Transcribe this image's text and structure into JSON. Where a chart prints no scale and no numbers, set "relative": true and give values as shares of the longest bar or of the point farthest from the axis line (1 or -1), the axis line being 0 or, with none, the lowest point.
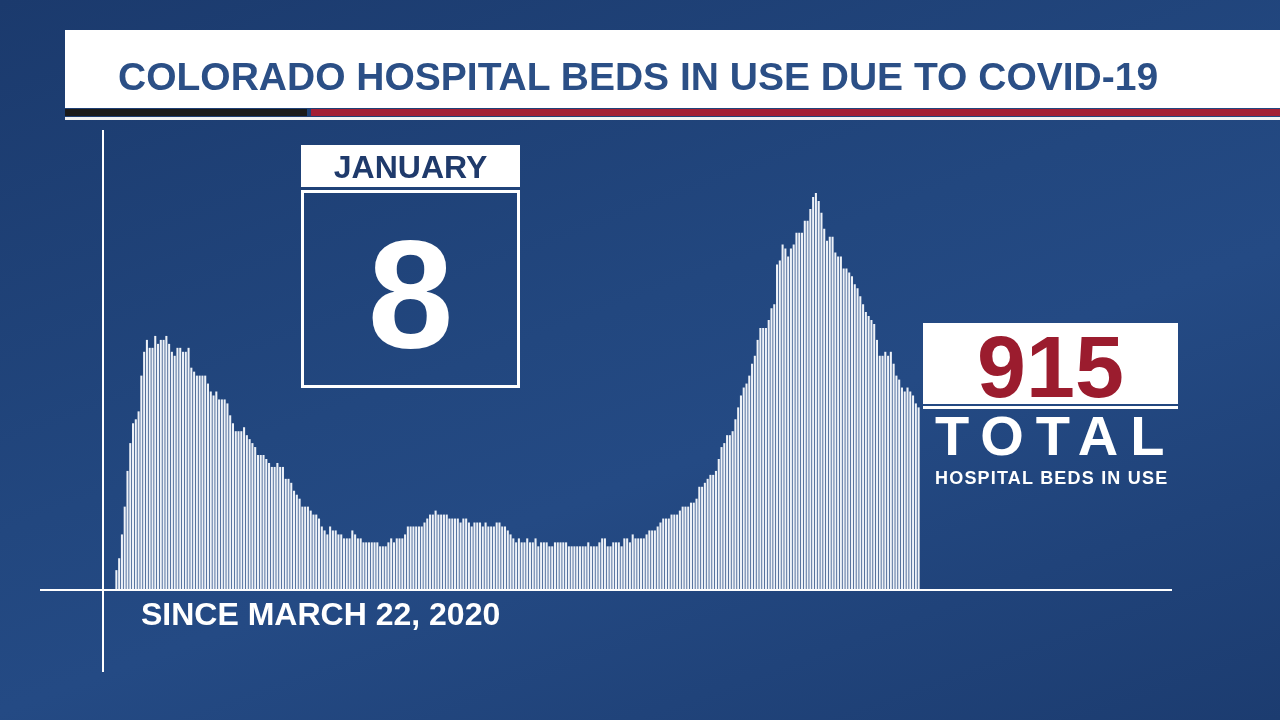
{
  "chart_data": {
    "type": "bar",
    "title": "COLORADO HOSPITAL BEDS IN USE DUE TO COVID-19",
    "relative": true,
    "color": "#eef2f8",
    "categories": [
      null,
      null,
      null,
      null,
      null,
      null,
      null,
      null,
      null,
      null,
      null,
      null,
      null,
      null,
      null,
      null,
      null,
      null,
      null,
      null,
      null,
      null,
      null,
      null,
      null,
      null,
      null,
      null,
      null,
      null,
      null,
      null,
      null,
      null,
      null,
      null,
      null,
      null,
      null,
      null,
      null,
      null,
      null,
      null,
      null,
      null,
      null,
      null,
      null,
      null,
      null,
      null,
      null,
      null,
      null,
      null,
      null,
      null,
      null,
      null,
      null,
      null,
      null,
      null,
      null,
      null,
      null,
      null,
      null,
      null,
      null,
      null,
      null,
      null,
      null,
      null,
      null,
      null,
      null,
      null,
      null,
      null,
      null,
      null,
      null,
      null,
      null,
      null,
      null,
      null,
      null,
      null,
      null,
      null,
      null,
      null,
      null,
      null,
      null,
      null,
      null,
      null,
      null,
      null,
      null,
      null,
      null,
      null,
      null,
      null,
      null,
      null,
      null,
      null,
      null,
      null,
      null,
      null,
      null,
      null,
      null,
      null,
      null,
      null,
      null,
      null,
      null,
      null,
      null,
      null,
      null,
      null,
      null,
      null,
      null,
      null,
      null,
      null,
      null,
      null,
      null,
      null,
      null,
      null,
      null,
      null,
      null,
      null,
      null,
      null,
      null,
      null,
      null,
      null,
      null,
      null,
      null,
      null,
      null,
      null,
      null,
      null,
      null,
      null,
      null,
      null,
      null,
      null,
      null,
      null,
      null,
      null,
      null,
      null,
      null,
      null,
      null,
      null,
      null,
      null,
      null,
      null,
      null,
      null,
      null,
      null,
      null,
      null,
      null,
      null,
      null,
      null,
      null,
      null,
      null,
      null,
      null,
      null,
      null,
      null,
      null,
      null,
      null,
      null,
      null,
      null,
      null,
      null,
      null,
      null,
      null,
      null,
      null,
      null,
      null,
      null,
      null,
      null,
      null,
      null,
      null,
      null,
      null,
      null,
      null,
      null,
      null,
      null,
      null,
      null,
      null,
      null,
      null,
      null,
      null,
      null,
      null,
      null,
      null,
      null,
      null,
      null,
      null,
      null,
      null,
      null,
      null,
      null,
      null,
      null,
      null,
      null,
      null,
      null,
      null,
      null,
      null,
      null,
      null,
      null,
      null,
      null,
      null,
      null,
      null,
      null,
      null,
      null,
      null,
      null,
      null,
      null,
      null,
      null,
      null,
      null,
      null,
      null,
      null,
      null,
      null,
      null,
      null,
      null,
      null,
      null,
      null,
      null,
      null,
      null
    ],
    "values": [
      0.05,
      0.08,
      0.14,
      0.21,
      0.3,
      0.37,
      0.42,
      0.43,
      0.45,
      0.54,
      0.6,
      0.63,
      0.61,
      0.61,
      0.64,
      0.62,
      0.63,
      0.63,
      0.64,
      0.62,
      0.6,
      0.59,
      0.61,
      0.61,
      0.6,
      0.6,
      0.61,
      0.56,
      0.55,
      0.54,
      0.54,
      0.54,
      0.54,
      0.52,
      0.5,
      0.49,
      0.5,
      0.48,
      0.48,
      0.48,
      0.47,
      0.44,
      0.42,
      0.4,
      0.4,
      0.4,
      0.41,
      0.39,
      0.38,
      0.37,
      0.36,
      0.34,
      0.34,
      0.34,
      0.33,
      0.32,
      0.31,
      0.31,
      0.32,
      0.31,
      0.31,
      0.28,
      0.28,
      0.27,
      0.25,
      0.24,
      0.23,
      0.21,
      0.21,
      0.21,
      0.2,
      0.19,
      0.19,
      0.18,
      0.16,
      0.15,
      0.14,
      0.16,
      0.15,
      0.15,
      0.14,
      0.14,
      0.13,
      0.13,
      0.13,
      0.15,
      0.14,
      0.13,
      0.13,
      0.12,
      0.12,
      0.12,
      0.12,
      0.12,
      0.12,
      0.11,
      0.11,
      0.11,
      0.12,
      0.13,
      0.12,
      0.13,
      0.13,
      0.13,
      0.14,
      0.16,
      0.16,
      0.16,
      0.16,
      0.16,
      0.16,
      0.17,
      0.18,
      0.19,
      0.19,
      0.2,
      0.19,
      0.19,
      0.19,
      0.19,
      0.18,
      0.18,
      0.18,
      0.18,
      0.17,
      0.18,
      0.18,
      0.17,
      0.16,
      0.17,
      0.17,
      0.17,
      0.16,
      0.17,
      0.16,
      0.16,
      0.16,
      0.17,
      0.17,
      0.16,
      0.16,
      0.15,
      0.14,
      0.13,
      0.12,
      0.13,
      0.12,
      0.12,
      0.13,
      0.12,
      0.12,
      0.13,
      0.11,
      0.12,
      0.12,
      0.12,
      0.11,
      0.11,
      0.12,
      0.12,
      0.12,
      0.12,
      0.12,
      0.11,
      0.11,
      0.11,
      0.11,
      0.11,
      0.11,
      0.11,
      0.12,
      0.11,
      0.11,
      0.11,
      0.12,
      0.13,
      0.13,
      0.11,
      0.11,
      0.12,
      0.12,
      0.12,
      0.11,
      0.13,
      0.13,
      0.12,
      0.14,
      0.13,
      0.13,
      0.13,
      0.13,
      0.14,
      0.15,
      0.15,
      0.15,
      0.16,
      0.17,
      0.18,
      0.18,
      0.18,
      0.19,
      0.19,
      0.19,
      0.2,
      0.21,
      0.21,
      0.21,
      0.22,
      0.22,
      0.23,
      0.26,
      0.26,
      0.27,
      0.28,
      0.29,
      0.29,
      0.3,
      0.33,
      0.36,
      0.37,
      0.39,
      0.39,
      0.4,
      0.43,
      0.46,
      0.49,
      0.51,
      0.52,
      0.54,
      0.57,
      0.59,
      0.63,
      0.66,
      0.66,
      0.66,
      0.68,
      0.71,
      0.72,
      0.82,
      0.83,
      0.87,
      0.86,
      0.84,
      0.86,
      0.87,
      0.9,
      0.9,
      0.9,
      0.93,
      0.93,
      0.96,
      0.99,
      1,
      0.98,
      0.95,
      0.91,
      0.88,
      0.89,
      0.89,
      0.85,
      0.84,
      0.84,
      0.81,
      0.81,
      0.8,
      0.79,
      0.77,
      0.76,
      0.74,
      0.72,
      0.7,
      0.69,
      0.68,
      0.67,
      0.63,
      0.59,
      0.59,
      0.6,
      0.59,
      0.6,
      0.57,
      0.54,
      0.53,
      0.51,
      0.5,
      0.51,
      0.5,
      0.49,
      0.47,
      0.46
    ],
    "annotations": [
      "JANUARY",
      "8",
      "915",
      "TOTAL",
      "HOSPITAL BEDS IN USE",
      "SINCE MARCH 22, 2020"
    ]
  }
}
